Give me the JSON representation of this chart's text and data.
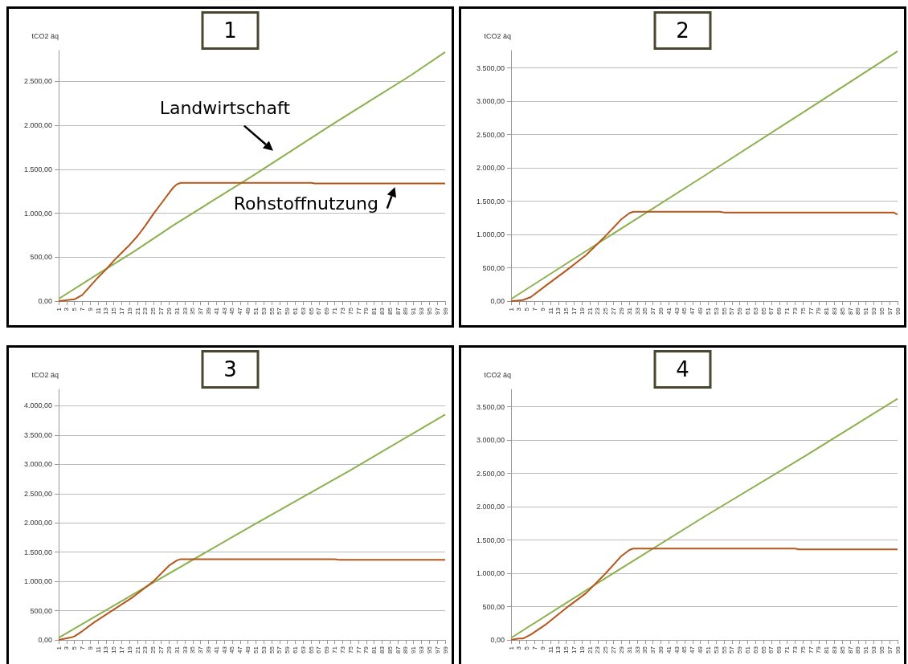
{
  "chart_data": [
    {
      "type": "line",
      "title": "1",
      "ylabel": "tCO2 äq",
      "grid": "y",
      "xlim": [
        1,
        99
      ],
      "xticks": [
        1,
        3,
        5,
        7,
        9,
        11,
        13,
        15,
        17,
        19,
        21,
        23,
        25,
        27,
        29,
        31,
        33,
        35,
        37,
        39,
        41,
        43,
        45,
        47,
        49,
        51,
        53,
        55,
        57,
        59,
        61,
        63,
        65,
        67,
        69,
        71,
        73,
        75,
        77,
        79,
        81,
        83,
        85,
        87,
        89,
        91,
        93,
        95,
        97,
        99
      ],
      "ylim": [
        0,
        2850
      ],
      "yticks": [
        {
          "value": 0,
          "label": "0,00"
        },
        {
          "value": 500,
          "label": "500,00"
        },
        {
          "value": 1000,
          "label": "1.000,00"
        },
        {
          "value": 1500,
          "label": "1.500,00"
        },
        {
          "value": 2000,
          "label": "2.000,00"
        },
        {
          "value": 2500,
          "label": "2.500,00"
        }
      ],
      "series": [
        {
          "name": "Landwirtschaft",
          "color": "#8db04f",
          "x": [
            1,
            11,
            20,
            30,
            40,
            50,
            60,
            70,
            80,
            90,
            99
          ],
          "values": [
            25,
            310,
            560,
            860,
            1140,
            1420,
            1710,
            2000,
            2280,
            2560,
            2833
          ]
        },
        {
          "name": "Rohstoffnutzung",
          "color": "#b5561c",
          "x": [
            1,
            2,
            4,
            5,
            7,
            9,
            11,
            13,
            15,
            17,
            19,
            21,
            23,
            25,
            27,
            29,
            30,
            31,
            32,
            65,
            66,
            99
          ],
          "values": [
            0,
            5,
            15,
            20,
            70,
            170,
            270,
            360,
            460,
            550,
            640,
            740,
            860,
            990,
            1110,
            1230,
            1290,
            1330,
            1345,
            1345,
            1338,
            1338
          ]
        }
      ]
    },
    {
      "type": "line",
      "title": "2",
      "ylabel": "tCO2 äq",
      "grid": "y",
      "xlim": [
        1,
        99
      ],
      "xticks": [
        1,
        3,
        5,
        7,
        9,
        11,
        13,
        15,
        17,
        19,
        21,
        23,
        25,
        27,
        29,
        31,
        33,
        35,
        37,
        39,
        41,
        43,
        45,
        47,
        49,
        51,
        53,
        55,
        57,
        59,
        61,
        63,
        65,
        67,
        69,
        71,
        73,
        75,
        77,
        79,
        81,
        83,
        85,
        87,
        89,
        91,
        93,
        95,
        97,
        99
      ],
      "ylim": [
        0,
        3760
      ],
      "yticks": [
        {
          "value": 0,
          "label": "0,00"
        },
        {
          "value": 500,
          "label": "500,00"
        },
        {
          "value": 1000,
          "label": "1.000,00"
        },
        {
          "value": 1500,
          "label": "1.500,00"
        },
        {
          "value": 2000,
          "label": "2.000,00"
        },
        {
          "value": 2500,
          "label": "2.500,00"
        },
        {
          "value": 3000,
          "label": "3.000,00"
        },
        {
          "value": 3500,
          "label": "3.500,00"
        }
      ],
      "series": [
        {
          "color": "#8db04f",
          "x": [
            1,
            25,
            50,
            75,
            99
          ],
          "values": [
            30,
            940,
            1880,
            2830,
            3750
          ]
        },
        {
          "color": "#b5561c",
          "x": [
            1,
            3,
            4,
            6,
            10,
            15,
            20,
            25,
            29,
            31,
            32,
            54,
            55,
            98,
            99
          ],
          "values": [
            0,
            10,
            15,
            60,
            240,
            460,
            690,
            980,
            1230,
            1320,
            1340,
            1340,
            1330,
            1330,
            1300
          ]
        }
      ]
    },
    {
      "type": "line",
      "title": "3",
      "ylabel": "tCO2 äq",
      "grid": "y",
      "xlim": [
        1,
        99
      ],
      "xticks": [
        1,
        3,
        5,
        7,
        9,
        11,
        13,
        15,
        17,
        19,
        21,
        23,
        25,
        27,
        29,
        31,
        33,
        35,
        37,
        39,
        41,
        43,
        45,
        47,
        49,
        51,
        53,
        55,
        57,
        59,
        61,
        63,
        65,
        67,
        69,
        71,
        73,
        75,
        77,
        79,
        81,
        83,
        85,
        87,
        89,
        91,
        93,
        95,
        97,
        99
      ],
      "ylim": [
        0,
        4280
      ],
      "yticks": [
        {
          "value": 0,
          "label": "0,00"
        },
        {
          "value": 500,
          "label": "500,00"
        },
        {
          "value": 1000,
          "label": "1.000,00"
        },
        {
          "value": 1500,
          "label": "1.500,00"
        },
        {
          "value": 2000,
          "label": "2.000,00"
        },
        {
          "value": 2500,
          "label": "2.500,00"
        },
        {
          "value": 3000,
          "label": "3.000,00"
        },
        {
          "value": 3500,
          "label": "3.500,00"
        },
        {
          "value": 4000,
          "label": "4.000,00"
        }
      ],
      "series": [
        {
          "color": "#8db04f",
          "x": [
            1,
            25,
            50,
            75,
            99
          ],
          "values": [
            35,
            980,
            1950,
            2900,
            3850
          ]
        },
        {
          "color": "#b5561c",
          "x": [
            1,
            4,
            5,
            7,
            10,
            15,
            20,
            25,
            29,
            31,
            32,
            71,
            72,
            99
          ],
          "values": [
            0,
            40,
            60,
            150,
            300,
            520,
            740,
            1000,
            1270,
            1360,
            1380,
            1380,
            1370,
            1370
          ]
        }
      ]
    },
    {
      "type": "line",
      "title": "4",
      "ylabel": "tCO2 äq",
      "grid": "y",
      "xlim": [
        1,
        99
      ],
      "xticks": [
        1,
        3,
        5,
        7,
        9,
        11,
        13,
        15,
        17,
        19,
        21,
        23,
        25,
        27,
        29,
        31,
        33,
        35,
        37,
        39,
        41,
        43,
        45,
        47,
        49,
        51,
        53,
        55,
        57,
        59,
        61,
        63,
        65,
        67,
        69,
        71,
        73,
        75,
        77,
        79,
        81,
        83,
        85,
        87,
        89,
        91,
        93,
        95,
        97,
        99
      ],
      "ylim": [
        0,
        3760
      ],
      "yticks": [
        {
          "value": 0,
          "label": "0,00"
        },
        {
          "value": 500,
          "label": "500,00"
        },
        {
          "value": 1000,
          "label": "1.000,00"
        },
        {
          "value": 1500,
          "label": "1.500,00"
        },
        {
          "value": 2000,
          "label": "2.000,00"
        },
        {
          "value": 2500,
          "label": "2.500,00"
        },
        {
          "value": 3000,
          "label": "3.000,00"
        },
        {
          "value": 3500,
          "label": "3.500,00"
        }
      ],
      "series": [
        {
          "color": "#8db04f",
          "x": [
            1,
            25,
            50,
            75,
            99
          ],
          "values": [
            30,
            930,
            1850,
            2740,
            3620
          ]
        },
        {
          "color": "#b5561c",
          "x": [
            1,
            3,
            4,
            6,
            10,
            15,
            20,
            25,
            29,
            31,
            32,
            73,
            74,
            99
          ],
          "values": [
            0,
            20,
            20,
            80,
            240,
            480,
            700,
            1000,
            1260,
            1350,
            1370,
            1370,
            1360,
            1360
          ]
        }
      ]
    }
  ]
}
